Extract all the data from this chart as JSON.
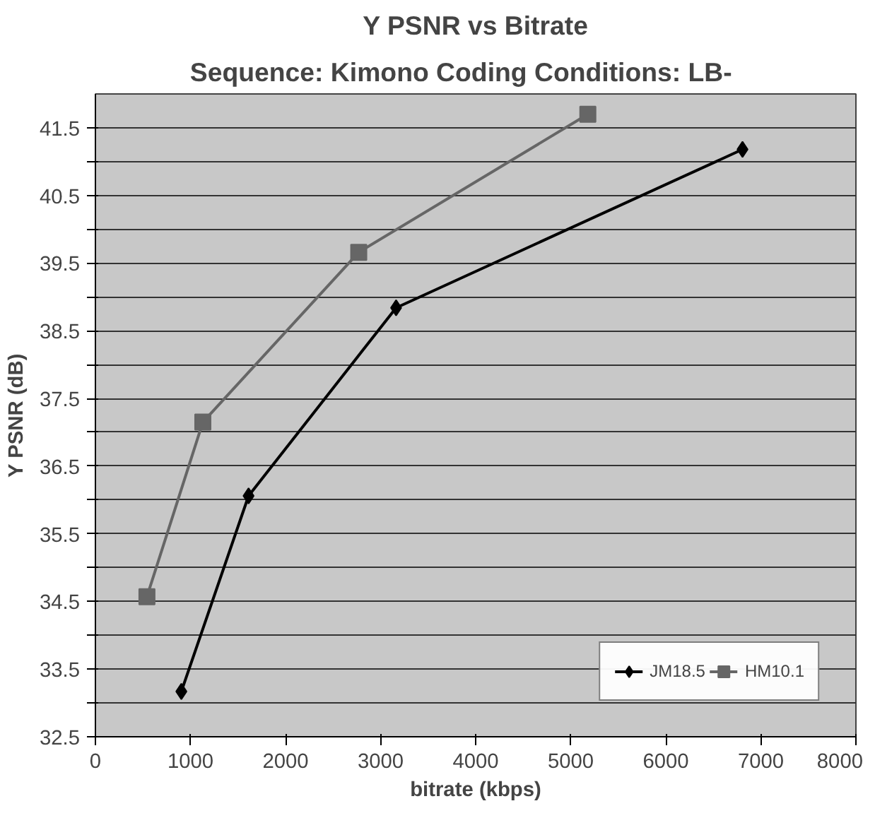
{
  "chart_data": {
    "type": "line",
    "title": "Y PSNR vs Bitrate",
    "subtitle": "Sequence: Kimono     Coding Conditions: LB-",
    "xlabel": "bitrate (kbps)",
    "ylabel": "Y PSNR (dB)",
    "series": [
      {
        "name": "JM18.5",
        "color": "#000000",
        "marker": "diamond",
        "x": [
          904,
          1611,
          3163,
          6807
        ],
        "values": [
          33.17,
          36.06,
          38.84,
          41.18
        ]
      },
      {
        "name": "HM10.1",
        "color": "#666666",
        "marker": "square",
        "x": [
          542,
          1130,
          2770,
          5180
        ],
        "values": [
          34.57,
          37.15,
          39.66,
          41.7
        ]
      }
    ],
    "xlim": [
      0,
      8000
    ],
    "xticks": [
      0,
      1000,
      2000,
      3000,
      4000,
      5000,
      6000,
      7000,
      8000
    ],
    "ylim": [
      32.5,
      42
    ],
    "yticks": [
      32.5,
      {
        "value": 33,
        "label": null
      },
      33.5,
      {
        "value": 34,
        "label": null
      },
      34.5,
      {
        "value": 35,
        "label": null
      },
      35.5,
      {
        "value": 36,
        "label": null
      },
      36.5,
      {
        "value": 37,
        "label": null
      },
      37.5,
      {
        "value": 38,
        "label": null
      },
      38.5,
      {
        "value": 39,
        "label": null
      },
      39.5,
      {
        "value": 40,
        "label": null
      },
      40.5,
      {
        "value": 41,
        "label": null
      },
      41.5
    ],
    "grid": "y",
    "legend": "bottom right",
    "line_style": "solid"
  }
}
